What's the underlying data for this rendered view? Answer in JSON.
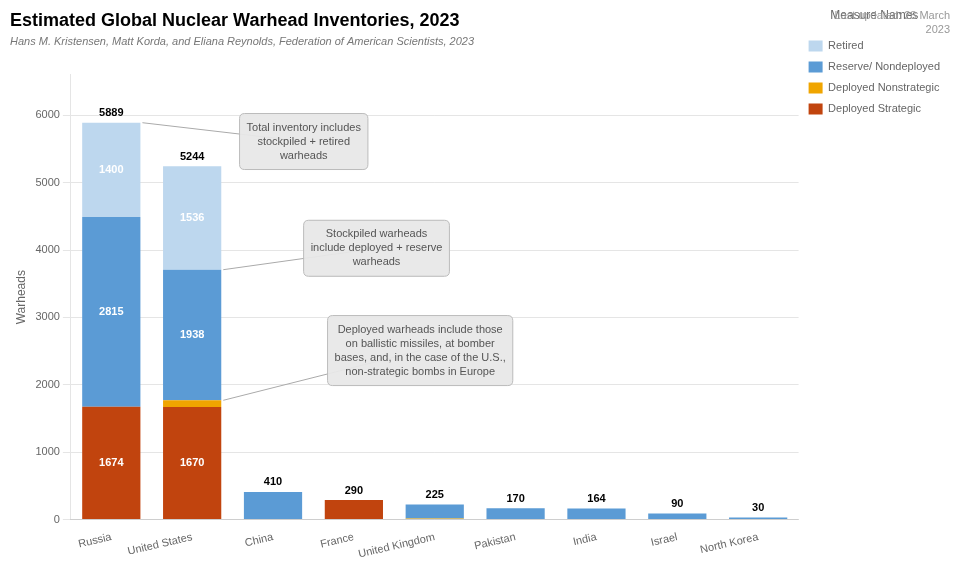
{
  "chart_data": {
    "type": "bar",
    "stacked": true,
    "title": "Estimated Global Nuclear Warhead Inventories, 2023",
    "subtitle": "Hans M. Kristensen, Matt Korda, and Eliana Reynolds, Federation of American Scientists, 2023",
    "note": "Last updated: 28 March\n2023",
    "ylabel": "Warheads",
    "categories": [
      "Russia",
      "United States",
      "China",
      "France",
      "United Kingdom",
      "Pakistan",
      "India",
      "Israel",
      "North Korea"
    ],
    "series": [
      {
        "name": "Deployed Strategic",
        "color": "#c1440e",
        "values": [
          1674,
          1670,
          0,
          290,
          0,
          0,
          0,
          0,
          0
        ],
        "value_labels": [
          "1674",
          "1670",
          null,
          null,
          null,
          null,
          null,
          null,
          null
        ]
      },
      {
        "name": "Deployed Nonstrategic",
        "color": "#f0a500",
        "values": [
          0,
          100,
          0,
          0,
          15,
          0,
          0,
          0,
          0
        ]
      },
      {
        "name": "Reserve/ Nondeployed",
        "color": "#5b9bd5",
        "values": [
          2815,
          1938,
          410,
          0,
          210,
          170,
          164,
          90,
          30
        ],
        "value_labels": [
          "2815",
          "1938",
          null,
          null,
          null,
          null,
          null,
          null,
          null
        ]
      },
      {
        "name": "Retired",
        "color": "#bdd7ee",
        "values": [
          1400,
          1536,
          0,
          0,
          0,
          0,
          0,
          0,
          0
        ],
        "value_labels": [
          "1400",
          "1536",
          null,
          null,
          null,
          null,
          null,
          null,
          null
        ]
      }
    ],
    "totals": [
      5889,
      5244,
      410,
      290,
      225,
      170,
      164,
      90,
      30
    ],
    "ylim": [
      0,
      6600
    ],
    "yticks": [
      0,
      1000,
      2000,
      3000,
      4000,
      5000,
      6000
    ],
    "grid": true,
    "legend": "right",
    "legend_title": "Measure Names",
    "annotations": [
      "Total inventory includes\nstockpiled + retired\nwarheads",
      "Stockpiled warheads\ninclude deployed + reserve\nwarheads",
      "Deployed warheads include those\non ballistic missiles, at bomber\nbases, and, in the case of the U.S.,\nnon-strategic bombs in Europe"
    ]
  }
}
